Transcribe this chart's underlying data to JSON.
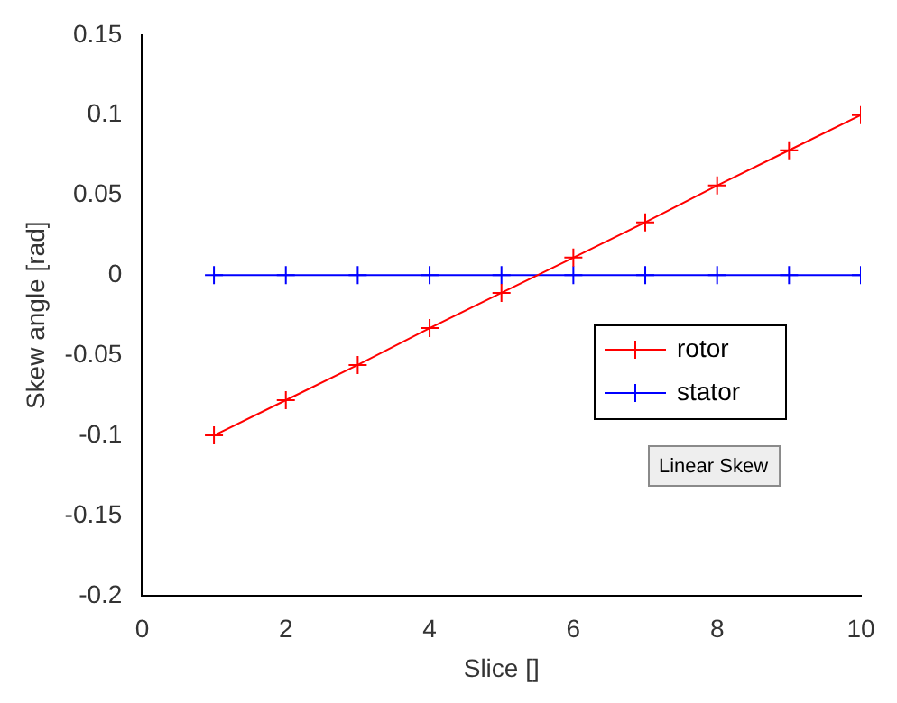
{
  "chart_data": {
    "type": "line",
    "xlabel": "Slice []",
    "ylabel": "Skew angle [rad]",
    "x": [
      1,
      2,
      3,
      4,
      5,
      6,
      7,
      8,
      9,
      10
    ],
    "series": [
      {
        "name": "rotor",
        "color": "#ff0000",
        "values": [
          -0.1,
          -0.078,
          -0.056,
          -0.033,
          -0.011,
          0.011,
          0.033,
          0.056,
          0.078,
          0.1
        ]
      },
      {
        "name": "stator",
        "color": "#0000ff",
        "values": [
          0,
          0,
          0,
          0,
          0,
          0,
          0,
          0,
          0,
          0
        ]
      }
    ],
    "xlim": [
      0,
      10
    ],
    "xticks": [
      0,
      2,
      4,
      6,
      8,
      10
    ],
    "ylim": [
      -0.2,
      0.15
    ],
    "yticks": [
      -0.2,
      -0.15,
      -0.1,
      -0.05,
      0,
      0.05,
      0.1,
      0.15
    ],
    "grid": false,
    "legend": "right",
    "marker": "cross",
    "line_style": "solid",
    "annotations": [
      "Linear Skew"
    ]
  }
}
